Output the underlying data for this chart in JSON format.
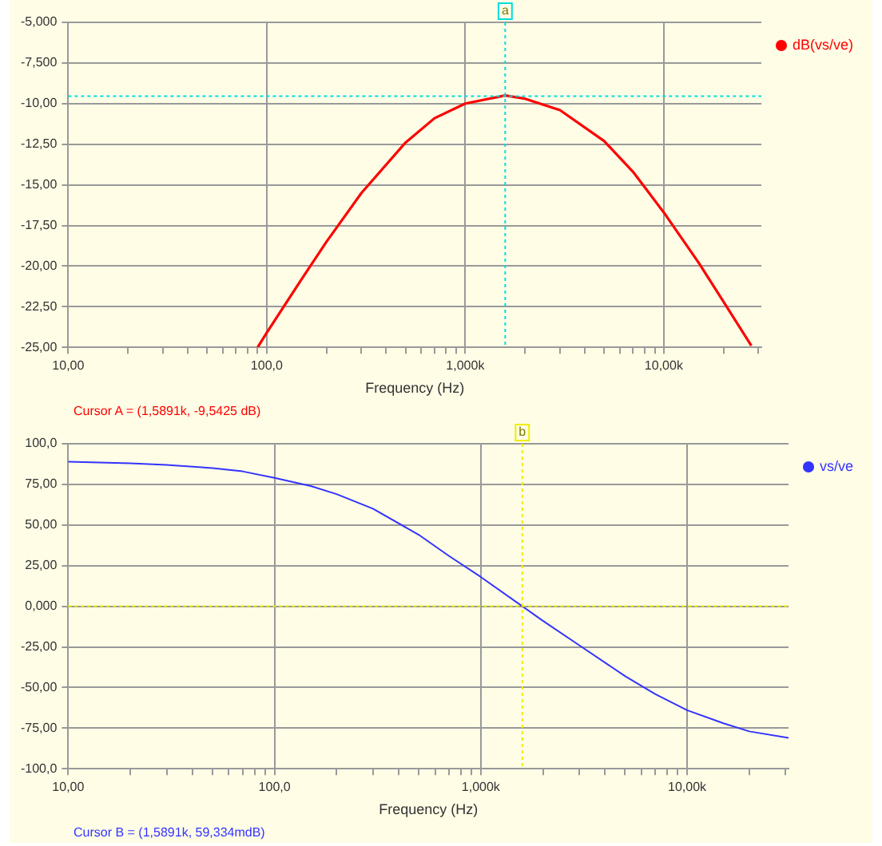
{
  "chart_data": [
    {
      "type": "line",
      "xlabel": "Frequency (Hz)",
      "log": "x",
      "grid": true,
      "legend": "top right",
      "marker": "none",
      "line_style": "solid",
      "xlim": [
        10,
        31000
      ],
      "xticks": [
        {
          "value": 10,
          "label": "10,00"
        },
        {
          "value": 20,
          "label": null
        },
        {
          "value": 30,
          "label": null
        },
        {
          "value": 40,
          "label": null
        },
        {
          "value": 50,
          "label": null
        },
        {
          "value": 60,
          "label": null
        },
        {
          "value": 70,
          "label": null
        },
        {
          "value": 80,
          "label": null
        },
        {
          "value": 90,
          "label": null
        },
        {
          "value": 100,
          "label": "100,0"
        },
        {
          "value": 200,
          "label": null
        },
        {
          "value": 300,
          "label": null
        },
        {
          "value": 400,
          "label": null
        },
        {
          "value": 500,
          "label": null
        },
        {
          "value": 600,
          "label": null
        },
        {
          "value": 700,
          "label": null
        },
        {
          "value": 800,
          "label": null
        },
        {
          "value": 900,
          "label": null
        },
        {
          "value": 1000,
          "label": "1,000k"
        },
        {
          "value": 2000,
          "label": null
        },
        {
          "value": 3000,
          "label": null
        },
        {
          "value": 4000,
          "label": null
        },
        {
          "value": 5000,
          "label": null
        },
        {
          "value": 6000,
          "label": null
        },
        {
          "value": 7000,
          "label": null
        },
        {
          "value": 8000,
          "label": null
        },
        {
          "value": 9000,
          "label": null
        },
        {
          "value": 10000,
          "label": "10,00k"
        },
        {
          "value": 20000,
          "label": null
        },
        {
          "value": 30000,
          "label": null
        }
      ],
      "ylim": [
        -25,
        -5
      ],
      "yticks": [
        {
          "value": -25,
          "label": "-25,00"
        },
        {
          "value": -22.5,
          "label": "-22,50"
        },
        {
          "value": -20,
          "label": "-20,00"
        },
        {
          "value": -17.5,
          "label": "-17,50"
        },
        {
          "value": -15,
          "label": "-15,00"
        },
        {
          "value": -12.5,
          "label": "-12,50"
        },
        {
          "value": -10,
          "label": "-10,00"
        },
        {
          "value": -7.5,
          "label": "-7,500"
        },
        {
          "value": -5,
          "label": "-5,000"
        }
      ],
      "x": [
        90,
        100,
        150,
        200,
        300,
        500,
        700,
        1000,
        1589,
        2000,
        3000,
        5000,
        7000,
        10000,
        15000,
        20000,
        27600
      ],
      "series": [
        {
          "name": "dB(vs/ve)",
          "color": "#ff0000",
          "values": [
            -25.0,
            -24.1,
            -20.8,
            -18.5,
            -15.5,
            -12.4,
            -10.9,
            -10.0,
            -9.5,
            -9.7,
            -10.4,
            -12.3,
            -14.2,
            -16.7,
            -19.8,
            -22.2,
            -24.9
          ]
        }
      ],
      "ref_lines": [
        {
          "axis": "x",
          "value": 1589.1,
          "label": "a",
          "color": "#00dede",
          "line_style": "dotted"
        },
        {
          "axis": "y",
          "value": -9.5425,
          "label": null,
          "color": "#00dede",
          "line_style": "dotted"
        }
      ],
      "annotations": [
        "Cursor A = (1,5891k, -9,5425 dB)"
      ]
    },
    {
      "type": "line",
      "xlabel": "Frequency (Hz)",
      "log": "x",
      "grid": true,
      "legend": "top right",
      "marker": "none",
      "line_style": "solid",
      "xlim": [
        10,
        31000
      ],
      "xticks": [
        {
          "value": 10,
          "label": "10,00"
        },
        {
          "value": 20,
          "label": null
        },
        {
          "value": 30,
          "label": null
        },
        {
          "value": 40,
          "label": null
        },
        {
          "value": 50,
          "label": null
        },
        {
          "value": 60,
          "label": null
        },
        {
          "value": 70,
          "label": null
        },
        {
          "value": 80,
          "label": null
        },
        {
          "value": 90,
          "label": null
        },
        {
          "value": 100,
          "label": "100,0"
        },
        {
          "value": 200,
          "label": null
        },
        {
          "value": 300,
          "label": null
        },
        {
          "value": 400,
          "label": null
        },
        {
          "value": 500,
          "label": null
        },
        {
          "value": 600,
          "label": null
        },
        {
          "value": 700,
          "label": null
        },
        {
          "value": 800,
          "label": null
        },
        {
          "value": 900,
          "label": null
        },
        {
          "value": 1000,
          "label": "1,000k"
        },
        {
          "value": 2000,
          "label": null
        },
        {
          "value": 3000,
          "label": null
        },
        {
          "value": 4000,
          "label": null
        },
        {
          "value": 5000,
          "label": null
        },
        {
          "value": 6000,
          "label": null
        },
        {
          "value": 7000,
          "label": null
        },
        {
          "value": 8000,
          "label": null
        },
        {
          "value": 9000,
          "label": null
        },
        {
          "value": 10000,
          "label": "10,00k"
        },
        {
          "value": 20000,
          "label": null
        },
        {
          "value": 30000,
          "label": null
        }
      ],
      "ylim": [
        -100,
        100
      ],
      "yticks": [
        {
          "value": -100,
          "label": "-100,0"
        },
        {
          "value": -75,
          "label": "-75,00"
        },
        {
          "value": -50,
          "label": "-50,00"
        },
        {
          "value": -25,
          "label": "-25,00"
        },
        {
          "value": 0,
          "label": "0,000"
        },
        {
          "value": 25,
          "label": "25,00"
        },
        {
          "value": 50,
          "label": "50,00"
        },
        {
          "value": 75,
          "label": "75,00"
        },
        {
          "value": 100,
          "label": "100,0"
        }
      ],
      "x": [
        10,
        20,
        30,
        50,
        70,
        100,
        150,
        200,
        300,
        500,
        700,
        1000,
        1589,
        2000,
        3000,
        5000,
        7000,
        10000,
        15000,
        20000,
        31000
      ],
      "series": [
        {
          "name": "vs/ve",
          "color": "#3333ff",
          "values": [
            89,
            88,
            87,
            85,
            83,
            79,
            74,
            69,
            60,
            44,
            31,
            18,
            0,
            -9,
            -24,
            -43,
            -54,
            -64,
            -72,
            -77,
            -81
          ]
        }
      ],
      "ref_lines": [
        {
          "axis": "x",
          "value": 1589.1,
          "label": "b",
          "color": "#eeee00",
          "line_style": "dotted"
        },
        {
          "axis": "y",
          "value": 0,
          "label": null,
          "color": "#eeee00",
          "line_style": "dotted"
        }
      ],
      "annotations": [
        "Cursor B = (1,5891k, 59,334mdB)"
      ]
    }
  ]
}
